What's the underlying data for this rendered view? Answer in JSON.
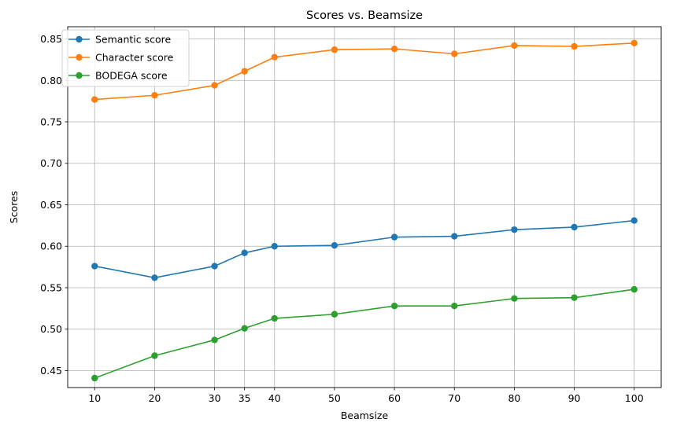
{
  "chart_data": {
    "type": "line",
    "title": "Scores vs. Beamsize",
    "xlabel": "Beamsize",
    "ylabel": "Scores",
    "x": [
      10,
      20,
      30,
      35,
      40,
      50,
      60,
      70,
      80,
      90,
      100
    ],
    "x_tick_labels": [
      "10",
      "20",
      "30",
      "35",
      "40",
      "50",
      "60",
      "70",
      "80",
      "90",
      "100"
    ],
    "y_ticks": [
      0.45,
      0.5,
      0.55,
      0.6,
      0.65,
      0.7,
      0.75,
      0.8,
      0.85
    ],
    "y_tick_labels": [
      "0.45",
      "0.50",
      "0.55",
      "0.60",
      "0.65",
      "0.70",
      "0.75",
      "0.80",
      "0.85"
    ],
    "xlim": [
      5.5,
      104.5
    ],
    "ylim": [
      0.4296,
      0.8647
    ],
    "grid": true,
    "legend_position": "top-left",
    "series": [
      {
        "name": "Semantic score",
        "color": "#1f77b4",
        "marker": "circle",
        "values": [
          0.576,
          0.562,
          0.576,
          0.592,
          0.6,
          0.601,
          0.611,
          0.612,
          0.62,
          0.623,
          0.631
        ]
      },
      {
        "name": "Character score",
        "color": "#ff7f0e",
        "marker": "circle",
        "values": [
          0.777,
          0.782,
          0.794,
          0.811,
          0.828,
          0.837,
          0.838,
          0.832,
          0.842,
          0.841,
          0.845
        ]
      },
      {
        "name": "BODEGA score",
        "color": "#2ca02c",
        "marker": "circle",
        "values": [
          0.441,
          0.468,
          0.487,
          0.501,
          0.513,
          0.518,
          0.528,
          0.528,
          0.537,
          0.538,
          0.548
        ]
      }
    ]
  }
}
